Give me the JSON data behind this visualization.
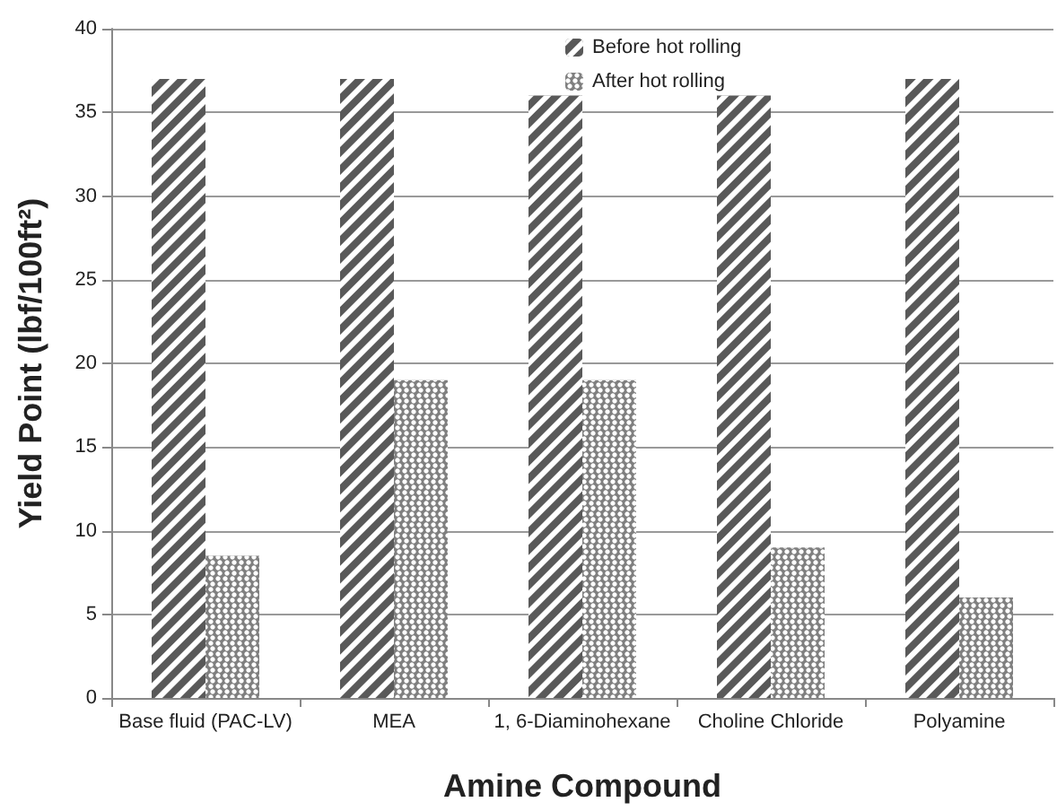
{
  "chart_data": {
    "type": "bar",
    "xlabel": "Amine Compound",
    "ylabel": "Yield Point (lbf/100ft²)",
    "categories": [
      "Base fluid (PAC-LV)",
      "MEA",
      "1, 6-Diaminohexane",
      "Choline Chloride",
      "Polyamine"
    ],
    "series": [
      {
        "name": "Before hot rolling",
        "color": "#595959",
        "values": [
          37,
          37,
          36,
          36,
          37
        ]
      },
      {
        "name": "After hot rolling",
        "color": "#7f7f7f",
        "values": [
          8.5,
          19,
          19,
          9,
          6
        ]
      }
    ],
    "ylim": [
      0,
      40
    ],
    "yticks": [
      0,
      5,
      10,
      15,
      20,
      25,
      30,
      35,
      40
    ],
    "grid": "y",
    "legend": "top"
  }
}
